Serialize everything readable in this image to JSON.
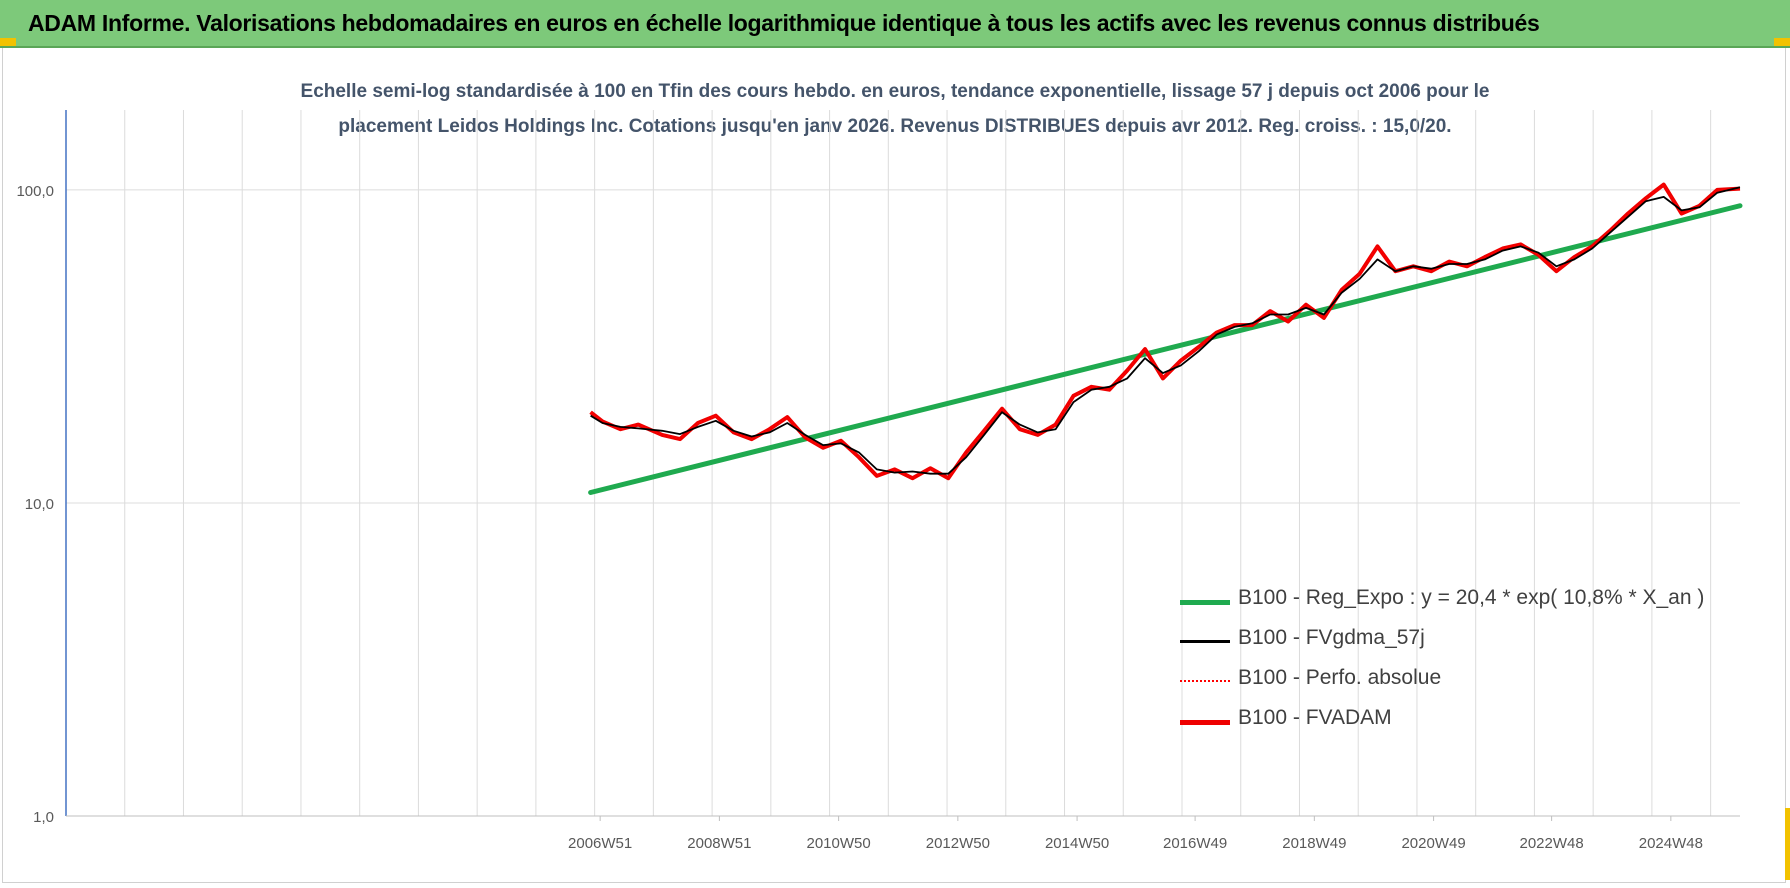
{
  "window": {
    "title": "ADAM Informe. Valorisations hebdomadaires en euros en échelle logarithmique identique à tous les actifs avec les revenus connus distribués"
  },
  "colors": {
    "banner": "#7dc97a",
    "accent_corner": "#f2c200",
    "reg_expo": "#1faa4f",
    "fvgdma": "#000000",
    "perfo": "#ff0000",
    "fvadam": "#ee0000"
  },
  "chart_data": {
    "type": "line",
    "title_lines": [
      "Echelle semi-log standardisée à 100 en Tfin des cours hebdo. en euros, tendance exponentielle, lissage 57 j depuis oct 2006 pour le",
      "placement Leidos Holdings Inc. Cotations jusqu'en janv 2026. Revenus DISTRIBUES depuis avr 2012. Reg. croiss. : 15,0/20."
    ],
    "y_scale": "log",
    "ylim": [
      1,
      180
    ],
    "y_ticks": [
      {
        "value": 1,
        "label": "1,0"
      },
      {
        "value": 10,
        "label": "10,0"
      },
      {
        "value": 100,
        "label": "100,0"
      }
    ],
    "x_ticks": [
      "2006W51",
      "2008W51",
      "2010W50",
      "2012W50",
      "2014W50",
      "2016W49",
      "2018W49",
      "2020W49",
      "2022W48",
      "2024W48"
    ],
    "x_tick_years": [
      2006.96,
      2008.96,
      2010.96,
      2012.96,
      2014.96,
      2016.94,
      2018.94,
      2020.94,
      2022.92,
      2024.92
    ],
    "x_start_year": 1998.0,
    "x_end_year": 2026.08,
    "grid": true,
    "legend_position": "bottom-right",
    "series": [
      {
        "name": "B100 - Reg_Expo : y = 20,4 * exp( 10,8% *  X_an )",
        "kind": "regression",
        "x": [
          2006.8,
          2026.08
        ],
        "y": [
          10.8,
          89.0
        ]
      },
      {
        "name": "B100 - FVgdma_57j",
        "kind": "smoothed",
        "x": [
          2006.8,
          2007.0,
          2007.3,
          2007.6,
          2008.0,
          2008.3,
          2008.6,
          2008.9,
          2009.2,
          2009.5,
          2009.8,
          2010.1,
          2010.4,
          2010.7,
          2011.0,
          2011.3,
          2011.6,
          2011.9,
          2012.2,
          2012.5,
          2012.8,
          2013.1,
          2013.4,
          2013.7,
          2014.0,
          2014.3,
          2014.6,
          2014.9,
          2015.2,
          2015.5,
          2015.8,
          2016.1,
          2016.4,
          2016.7,
          2017.0,
          2017.3,
          2017.6,
          2017.9,
          2018.2,
          2018.5,
          2018.8,
          2019.1,
          2019.4,
          2019.7,
          2020.0,
          2020.3,
          2020.6,
          2020.9,
          2021.2,
          2021.5,
          2021.8,
          2022.1,
          2022.4,
          2022.7,
          2023.0,
          2023.3,
          2023.6,
          2023.9,
          2024.2,
          2024.5,
          2024.8,
          2025.1,
          2025.4,
          2025.7,
          2026.08
        ],
        "y": [
          19.0,
          18.0,
          17.5,
          17.3,
          17.0,
          16.6,
          17.5,
          18.3,
          17.0,
          16.3,
          16.8,
          18.0,
          16.5,
          15.3,
          15.5,
          14.5,
          12.8,
          12.5,
          12.6,
          12.4,
          12.4,
          14.0,
          16.5,
          19.5,
          17.8,
          16.8,
          17.2,
          21.0,
          23.0,
          23.5,
          25.0,
          29.0,
          26.0,
          27.5,
          30.5,
          34.5,
          36.5,
          37.5,
          40.0,
          40.0,
          42.0,
          40.0,
          47.0,
          52.0,
          60.0,
          55.0,
          57.0,
          56.0,
          58.0,
          58.0,
          60.0,
          64.0,
          66.0,
          63.0,
          57.0,
          60.0,
          65.0,
          73.0,
          82.0,
          92.0,
          95.0,
          86.0,
          88.0,
          98.0,
          102.0
        ]
      },
      {
        "name": "B100 - Perfo. absolue",
        "kind": "dotted",
        "x": [
          2006.8,
          2007.0,
          2007.3,
          2007.6,
          2008.0,
          2008.3,
          2008.6,
          2008.9,
          2009.2,
          2009.5,
          2009.8,
          2010.1,
          2010.4,
          2010.7,
          2011.0,
          2011.3,
          2011.6,
          2011.9,
          2012.2,
          2012.5,
          2012.8,
          2013.1,
          2013.4,
          2013.7,
          2014.0,
          2014.3,
          2014.6,
          2014.9,
          2015.2,
          2015.5,
          2015.8,
          2016.1,
          2016.4,
          2016.7,
          2017.0,
          2017.3,
          2017.6,
          2017.9,
          2018.2,
          2018.5,
          2018.8,
          2019.1,
          2019.4,
          2019.7,
          2020.0,
          2020.3,
          2020.6,
          2020.9,
          2021.2,
          2021.5,
          2021.8,
          2022.1,
          2022.4,
          2022.7,
          2023.0,
          2023.3,
          2023.6,
          2023.9,
          2024.2,
          2024.5,
          2024.8,
          2025.1,
          2025.4,
          2025.7,
          2026.08
        ],
        "y": [
          19.5,
          18.2,
          17.2,
          17.8,
          16.5,
          16.0,
          18.0,
          19.0,
          16.8,
          16.0,
          17.2,
          18.8,
          16.2,
          15.0,
          15.8,
          14.0,
          12.2,
          12.8,
          12.0,
          12.9,
          12.0,
          14.5,
          17.0,
          20.0,
          17.2,
          16.5,
          17.8,
          22.0,
          23.5,
          23.0,
          26.5,
          31.0,
          25.0,
          28.5,
          31.5,
          35.0,
          37.0,
          37.0,
          41.0,
          38.0,
          43.0,
          39.0,
          48.0,
          54.0,
          66.0,
          55.0,
          57.0,
          55.0,
          59.0,
          57.0,
          61.0,
          65.0,
          67.0,
          62.0,
          55.0,
          61.0,
          66.0,
          74.0,
          84.0,
          94.0,
          104.0,
          84.0,
          89.0,
          100.0,
          101.0
        ]
      },
      {
        "name": "B100 - FVADAM",
        "kind": "main",
        "x": [
          2006.8,
          2007.0,
          2007.3,
          2007.6,
          2008.0,
          2008.3,
          2008.6,
          2008.9,
          2009.2,
          2009.5,
          2009.8,
          2010.1,
          2010.4,
          2010.7,
          2011.0,
          2011.3,
          2011.6,
          2011.9,
          2012.2,
          2012.5,
          2012.8,
          2013.1,
          2013.4,
          2013.7,
          2014.0,
          2014.3,
          2014.6,
          2014.9,
          2015.2,
          2015.5,
          2015.8,
          2016.1,
          2016.4,
          2016.7,
          2017.0,
          2017.3,
          2017.6,
          2017.9,
          2018.2,
          2018.5,
          2018.8,
          2019.1,
          2019.4,
          2019.7,
          2020.0,
          2020.3,
          2020.6,
          2020.9,
          2021.2,
          2021.5,
          2021.8,
          2022.1,
          2022.4,
          2022.7,
          2023.0,
          2023.3,
          2023.6,
          2023.9,
          2024.2,
          2024.5,
          2024.8,
          2025.1,
          2025.4,
          2025.7,
          2026.08
        ],
        "y": [
          19.5,
          18.2,
          17.2,
          17.8,
          16.5,
          16.0,
          18.0,
          19.0,
          16.8,
          16.0,
          17.2,
          18.8,
          16.2,
          15.0,
          15.8,
          14.0,
          12.2,
          12.8,
          12.0,
          12.9,
          12.0,
          14.5,
          17.0,
          20.0,
          17.2,
          16.5,
          17.8,
          22.0,
          23.5,
          23.0,
          26.5,
          31.0,
          25.0,
          28.5,
          31.5,
          35.0,
          37.0,
          37.0,
          41.0,
          38.0,
          43.0,
          39.0,
          48.0,
          54.0,
          66.0,
          55.0,
          57.0,
          55.0,
          59.0,
          57.0,
          61.0,
          65.0,
          67.0,
          62.0,
          55.0,
          61.0,
          66.0,
          74.0,
          84.0,
          94.0,
          104.0,
          84.0,
          89.0,
          100.0,
          101.0
        ]
      }
    ]
  }
}
